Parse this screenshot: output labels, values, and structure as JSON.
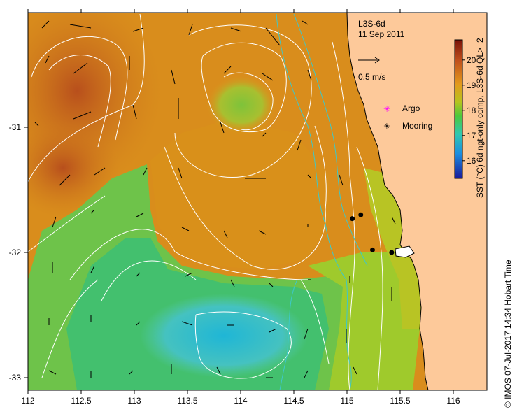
{
  "map": {
    "product": "L3S-6d",
    "date": "11 Sep 2011",
    "scale_label": "0.5 m/s",
    "legend": [
      {
        "label": "Argo",
        "symbol": "magenta-star-icon",
        "color": "#ff00ff"
      },
      {
        "label": "Mooring",
        "symbol": "black-star-icon",
        "color": "#000000"
      }
    ],
    "colorbar": {
      "title": "SST (°C) 6d ngt-only comp, L3S-6d QL>=2",
      "ticks": [
        "20",
        "19",
        "18",
        "17",
        "16"
      ],
      "min": 15.3,
      "max": 20.8
    },
    "x_ticks": [
      "112",
      "112.5",
      "113",
      "113.5",
      "114",
      "114.5",
      "115",
      "115.5",
      "116"
    ],
    "y_ticks": [
      "-31",
      "-32",
      "-33"
    ],
    "copyright": "© IMOS 07-Jul-2017 14:34 Hobart Time",
    "moorings": [
      {
        "lon": 115.05,
        "lat": -31.73
      },
      {
        "lon": 115.13,
        "lat": -31.7
      },
      {
        "lon": 115.24,
        "lat": -31.98
      },
      {
        "lon": 115.42,
        "lat": -32.0
      }
    ],
    "colors": {
      "land": "#fdc99a",
      "warm": "#d98a1a",
      "hot": "#c0581c",
      "mid": "#8ec83a",
      "cool": "#4fc9b5",
      "cold": "#25b8d0"
    }
  }
}
